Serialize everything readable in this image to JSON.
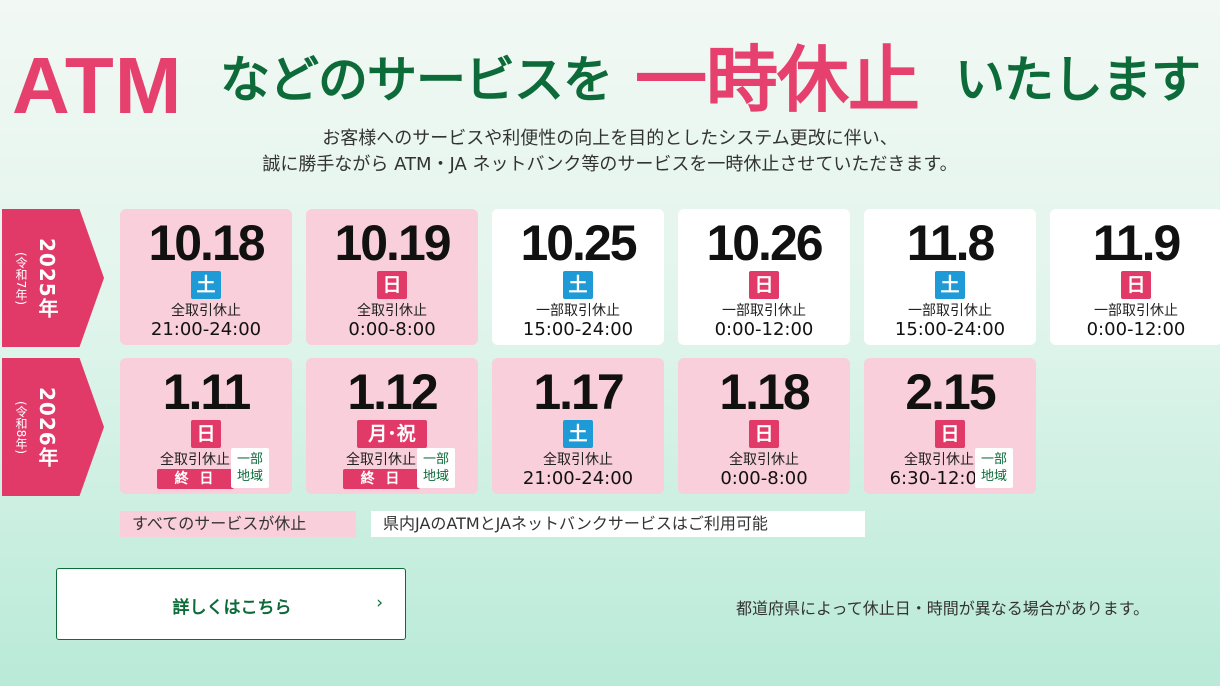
{
  "headline": {
    "part1": "ATM",
    "part2": "などのサービスを",
    "part3": "一時休止",
    "part4": "いたします",
    "accent_pink": "#e5406e",
    "accent_green": "#0d6b3a"
  },
  "subtitle": {
    "line1": "お客様へのサービスや利便性の向上を目的としたシステム更改に伴い、",
    "line2": "誠に勝手ながら ATM・JA ネットバンク等のサービスを一時休止させていただきます。"
  },
  "years": [
    {
      "year": "2025年",
      "era": "(令和7年)"
    },
    {
      "year": "2026年",
      "era": "(令和8年)"
    }
  ],
  "row1": [
    {
      "date": "10.18",
      "day": "土",
      "kind": "全取引休止",
      "time": "21:00-24:00",
      "status": "full"
    },
    {
      "date": "10.19",
      "day": "日",
      "kind": "全取引休止",
      "time": "0:00-8:00",
      "status": "full"
    },
    {
      "date": "10.25",
      "day": "土",
      "kind": "一部取引休止",
      "time": "15:00-24:00",
      "status": "partial"
    },
    {
      "date": "10.26",
      "day": "日",
      "kind": "一部取引休止",
      "time": "0:00-12:00",
      "status": "partial"
    },
    {
      "date": "11.8",
      "day": "土",
      "kind": "一部取引休止",
      "time": "15:00-24:00",
      "status": "partial"
    },
    {
      "date": "11.9",
      "day": "日",
      "kind": "一部取引休止",
      "time": "0:00-12:00",
      "status": "partial"
    }
  ],
  "row2": [
    {
      "date": "1.11",
      "day": "日",
      "kind": "全取引休止",
      "time": "終 日",
      "region": "一部\n地域",
      "status": "full"
    },
    {
      "date": "1.12",
      "day": "月･祝",
      "kind": "全取引休止",
      "time": "終 日",
      "region": "一部\n地域",
      "status": "full"
    },
    {
      "date": "1.17",
      "day": "土",
      "kind": "全取引休止",
      "time": "21:00-24:00",
      "status": "full"
    },
    {
      "date": "1.18",
      "day": "日",
      "kind": "全取引休止",
      "time": "0:00-8:00",
      "status": "full"
    },
    {
      "date": "2.15",
      "day": "日",
      "kind": "全取引休止",
      "time": "6:30-12:00",
      "region": "一部\n地域",
      "status": "full"
    }
  ],
  "legend": {
    "full": "すべてのサービスが休止",
    "partial": "県内JAのATMとJAネットバンクサービスはご利用可能"
  },
  "detail_button": {
    "label": "詳しくはこちら",
    "chevron": "›"
  },
  "note": "都道府県によって休止日・時間が異なる場合があります。",
  "colors": {
    "full_card": "#f8cfda",
    "partial_card": "#ffffff",
    "saturday": "#1e9ad6",
    "sunday": "#e23a68",
    "year_tab": "#e23a68"
  }
}
